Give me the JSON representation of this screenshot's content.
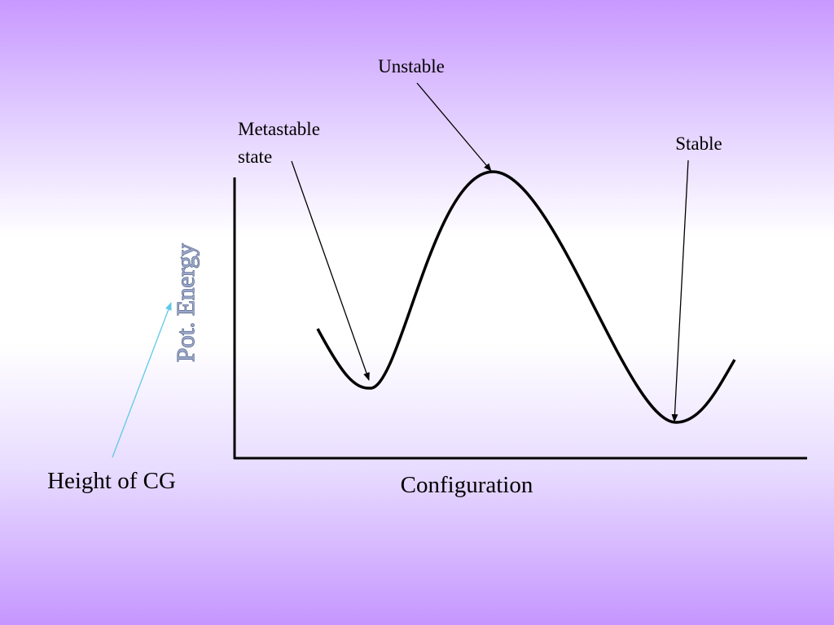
{
  "y_axis_label": "Pot. Energy",
  "x_axis_label": "Configuration",
  "pointer_label": "Height of CG",
  "annotations": {
    "unstable": "Unstable",
    "metastable": [
      "Metastable",
      "state"
    ],
    "stable": "Stable"
  }
}
